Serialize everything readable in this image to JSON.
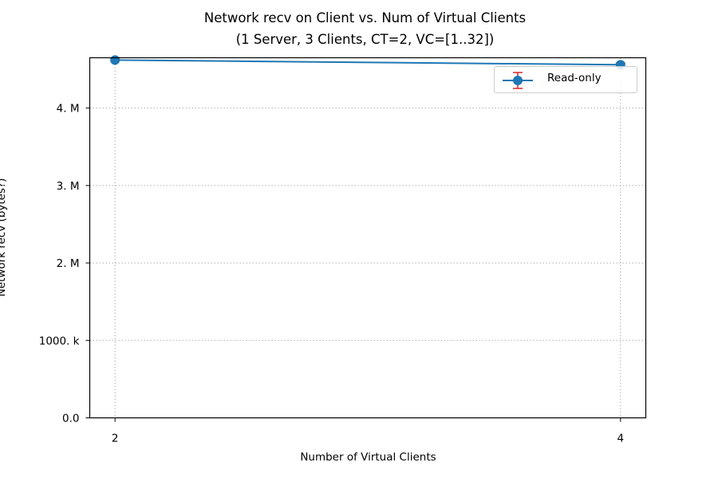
{
  "chart_data": {
    "type": "line",
    "title": "Network recv on Client vs. Num of Virtual Clients",
    "subtitle": "(1 Server, 3 Clients, CT=2, VC=[1..32])",
    "xlabel": "Number of Virtual Clients",
    "ylabel": "Network recv (bytes?)",
    "x": [
      2,
      4
    ],
    "xticks": [
      2,
      4
    ],
    "xtick_labels": [
      "2",
      "4"
    ],
    "xlim": [
      1.9,
      4.1
    ],
    "yticks": [
      0,
      1000000,
      2000000,
      3000000,
      4000000
    ],
    "ytick_labels": [
      "0.0",
      "1000. k",
      "2. M",
      "3. M",
      "4. M"
    ],
    "ylim": [
      0,
      4650000
    ],
    "grid": true,
    "legend_position": "top-right",
    "series": [
      {
        "name": "Read-only",
        "values": [
          4620000,
          4560000
        ],
        "line_color": "#1f77b4",
        "errorbar_color": "#d62728",
        "marker": "circle"
      }
    ]
  }
}
